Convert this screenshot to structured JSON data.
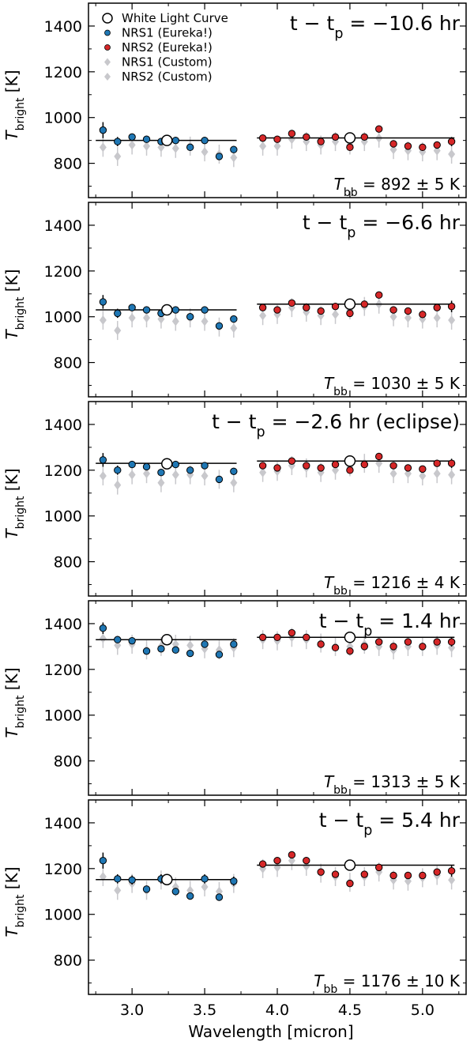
{
  "chart_data": {
    "type": "scatter",
    "xlabel": "Wavelength [micron]",
    "ylabel": "T",
    "ylabel_sub": "bright",
    "ylabel_unit": " [K]",
    "xlim": [
      2.7,
      5.3
    ],
    "ylim": [
      650,
      1500
    ],
    "x_ticks": [
      3.0,
      3.5,
      4.0,
      4.5,
      5.0
    ],
    "x_tick_labels": [
      "3.0",
      "3.5",
      "4.0",
      "4.5",
      "5.0"
    ],
    "y_ticks": [
      800,
      1000,
      1200,
      1400
    ],
    "y_tick_labels": [
      "800",
      "1000",
      "1200",
      "1400"
    ],
    "legend": {
      "placement": "top-left",
      "entries": [
        "White Light Curve",
        "NRS1 (Eureka!)",
        "NRS2 (Eureka!)",
        "NRS1 (Custom)",
        "NRS2 (Custom)"
      ]
    },
    "colors": {
      "nrs1": "#1f77b4",
      "nrs2": "#d62728",
      "custom": "#c8c8cc",
      "white": "#ffffff",
      "line": "#000000"
    },
    "nrs1_x": [
      2.8,
      2.9,
      3.0,
      3.1,
      3.2,
      3.3,
      3.4,
      3.5,
      3.6,
      3.7
    ],
    "nrs2_x": [
      3.9,
      4.0,
      4.1,
      4.2,
      4.3,
      4.4,
      4.5,
      4.6,
      4.7,
      4.8,
      4.9,
      5.0,
      5.1,
      5.2
    ],
    "wlc_x": [
      3.24,
      4.5
    ],
    "fit_ranges": [
      [
        2.75,
        3.72
      ],
      [
        3.86,
        5.22
      ]
    ],
    "panels": [
      {
        "phase": "t − t",
        "phase_sub": "p",
        "phase_value": " = −10.6 hr",
        "tbb_label": "T",
        "tbb_sub": "bb",
        "tbb_value": " = 892 ± 5 K",
        "wlc": [
          900,
          911
        ],
        "fit": [
          900,
          911
        ],
        "nrs1_eureka": [
          945,
          895,
          915,
          905,
          895,
          900,
          870,
          900,
          830,
          860
        ],
        "nrs1_err": [
          35,
          20,
          15,
          15,
          15,
          15,
          15,
          15,
          15,
          15
        ],
        "nrs2_eureka": [
          910,
          905,
          930,
          915,
          895,
          915,
          870,
          915,
          950,
          885,
          875,
          870,
          880,
          895
        ],
        "nrs2_err": [
          10,
          10,
          12,
          10,
          10,
          12,
          12,
          12,
          15,
          15,
          15,
          15,
          15,
          20
        ],
        "nrs1_custom": [
          870,
          830,
          880,
          875,
          870,
          865,
          875,
          850,
          840,
          825
        ],
        "nrs2_custom": [
          875,
          875,
          905,
          895,
          880,
          895,
          880,
          895,
          910,
          860,
          855,
          850,
          855,
          840
        ]
      },
      {
        "phase": "t − t",
        "phase_sub": "p",
        "phase_value": " = −6.6 hr",
        "tbb_label": "T",
        "tbb_sub": "bb",
        "tbb_value": " = 1030 ± 5 K",
        "wlc": [
          1030,
          1055
        ],
        "fit": [
          1030,
          1055
        ],
        "nrs1_eureka": [
          1065,
          1015,
          1040,
          1030,
          1015,
          1030,
          1000,
          1030,
          960,
          990
        ],
        "nrs1_err": [
          30,
          20,
          15,
          15,
          15,
          15,
          15,
          15,
          15,
          15
        ],
        "nrs2_eureka": [
          1040,
          1030,
          1060,
          1040,
          1025,
          1045,
          1015,
          1055,
          1095,
          1030,
          1025,
          1010,
          1040,
          1045
        ],
        "nrs2_err": [
          10,
          10,
          12,
          10,
          10,
          12,
          15,
          12,
          15,
          15,
          15,
          15,
          15,
          25
        ],
        "nrs1_custom": [
          985,
          940,
          995,
          995,
          990,
          980,
          995,
          980,
          955,
          950
        ],
        "nrs2_custom": [
          1005,
          1010,
          1040,
          1020,
          1005,
          1010,
          1030,
          1045,
          1055,
          1000,
          995,
          990,
          995,
          985
        ]
      },
      {
        "phase": "t − t",
        "phase_sub": "p",
        "phase_value": " = −2.6 hr (eclipse)",
        "tbb_label": "T",
        "tbb_sub": "bb",
        "tbb_value": " = 1216 ± 4 K",
        "wlc": [
          1228,
          1240
        ],
        "fit": [
          1230,
          1240
        ],
        "nrs1_eureka": [
          1245,
          1200,
          1225,
          1215,
          1190,
          1225,
          1200,
          1220,
          1160,
          1195
        ],
        "nrs1_err": [
          30,
          20,
          15,
          15,
          15,
          15,
          15,
          15,
          15,
          15
        ],
        "nrs2_eureka": [
          1220,
          1210,
          1240,
          1220,
          1210,
          1225,
          1200,
          1225,
          1260,
          1220,
          1210,
          1205,
          1230,
          1230
        ],
        "nrs2_err": [
          10,
          10,
          12,
          10,
          10,
          12,
          12,
          12,
          15,
          15,
          15,
          15,
          15,
          20
        ],
        "nrs1_custom": [
          1175,
          1135,
          1180,
          1185,
          1145,
          1180,
          1180,
          1175,
          1160,
          1145
        ],
        "nrs2_custom": [
          1190,
          1195,
          1220,
          1210,
          1190,
          1200,
          1215,
          1230,
          1230,
          1185,
          1185,
          1175,
          1185,
          1180
        ]
      },
      {
        "phase": "t − t",
        "phase_sub": "p",
        "phase_value": " = 1.4 hr",
        "tbb_label": "T",
        "tbb_sub": "bb",
        "tbb_value": " = 1313 ± 5 K",
        "wlc": [
          1330,
          1340
        ],
        "fit": [
          1330,
          1340
        ],
        "nrs1_eureka": [
          1380,
          1330,
          1325,
          1280,
          1290,
          1285,
          1270,
          1310,
          1265,
          1310
        ],
        "nrs1_err": [
          25,
          15,
          12,
          12,
          12,
          12,
          12,
          15,
          12,
          15
        ],
        "nrs2_eureka": [
          1340,
          1340,
          1360,
          1340,
          1310,
          1295,
          1280,
          1300,
          1320,
          1300,
          1320,
          1300,
          1320,
          1320
        ],
        "nrs2_err": [
          10,
          10,
          10,
          10,
          10,
          10,
          10,
          12,
          15,
          15,
          15,
          15,
          15,
          20
        ],
        "nrs1_custom": [
          1335,
          1305,
          1310,
          1285,
          1300,
          1310,
          1305,
          1290,
          1285,
          1295
        ],
        "nrs2_custom": [
          1330,
          1325,
          1340,
          1330,
          1315,
          1300,
          1300,
          1310,
          1300,
          1285,
          1300,
          1300,
          1305,
          1295
        ]
      },
      {
        "phase": "t − t",
        "phase_sub": "p",
        "phase_value": " = 5.4 hr",
        "tbb_label": "T",
        "tbb_sub": "bb",
        "tbb_value": " = 1176 ± 10 K",
        "wlc": [
          1152,
          1215
        ],
        "fit": [
          1152,
          1215
        ],
        "nrs1_eureka": [
          1235,
          1155,
          1150,
          1110,
          1155,
          1100,
          1080,
          1155,
          1075,
          1145
        ],
        "nrs1_err": [
          35,
          20,
          20,
          15,
          20,
          15,
          15,
          20,
          15,
          20
        ],
        "nrs2_eureka": [
          1220,
          1235,
          1260,
          1235,
          1185,
          1175,
          1135,
          1175,
          1205,
          1170,
          1170,
          1170,
          1185,
          1190
        ],
        "nrs2_err": [
          10,
          10,
          10,
          10,
          12,
          12,
          12,
          12,
          15,
          15,
          15,
          15,
          15,
          25
        ],
        "nrs1_custom": [
          1165,
          1105,
          1135,
          1105,
          1150,
          1120,
          1105,
          1120,
          1100,
          1135
        ],
        "nrs2_custom": [
          1200,
          1205,
          1235,
          1210,
          1180,
          1165,
          1140,
          1165,
          1185,
          1150,
          1145,
          1160,
          1170,
          1150
        ]
      }
    ]
  }
}
